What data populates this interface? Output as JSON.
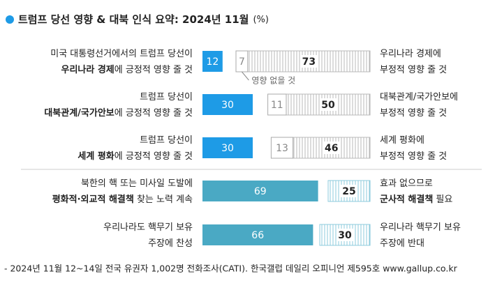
{
  "chart_data": {
    "type": "diverging-bar",
    "title": "트럼프 당선 영향 & 대북 인식 요약: 2024년 11월",
    "unit": "(%)",
    "annotation": "영향 없을 것",
    "footnote": "- 2024년 11월 12~14일 전국 유권자 1,002명 전화조사(CATI). 한국갤럽 데일리 오피니언 제595호 www.gallup.co.kr",
    "rows": [
      {
        "left_label": [
          [
            {
              "text": "미국 대통령선거에서의 트럼프 당선이"
            }
          ],
          [
            {
              "text": "우리나라 경제",
              "bold": true
            },
            {
              "text": "에 긍정적 영향 줄 것"
            }
          ]
        ],
        "right_label": [
          [
            {
              "text": "우리나라 경제에"
            }
          ],
          [
            {
              "text": "부정적 영향 줄 것"
            }
          ]
        ],
        "positive": 12,
        "neutral": 7,
        "negative": 73,
        "color": "#1e9be6",
        "negative_color": "#b8b8b8"
      },
      {
        "left_label": [
          [
            {
              "text": "트럼프 당선이"
            }
          ],
          [
            {
              "text": "대북관계/국가안보",
              "bold": true
            },
            {
              "text": "에 긍정적 영향 줄 것"
            }
          ]
        ],
        "right_label": [
          [
            {
              "text": "대북관계/국가안보에"
            }
          ],
          [
            {
              "text": "부정적 영향 줄 것"
            }
          ]
        ],
        "positive": 30,
        "neutral": 11,
        "negative": 50,
        "color": "#1e9be6",
        "negative_color": "#b8b8b8"
      },
      {
        "left_label": [
          [
            {
              "text": "트럼프 당선이"
            }
          ],
          [
            {
              "text": "세계 평화",
              "bold": true
            },
            {
              "text": "에 긍정적 영향 줄 것"
            }
          ]
        ],
        "right_label": [
          [
            {
              "text": "세계 평화에"
            }
          ],
          [
            {
              "text": "부정적 영향 줄 것"
            }
          ]
        ],
        "positive": 30,
        "neutral": 13,
        "negative": 46,
        "color": "#1e9be6",
        "negative_color": "#b8b8b8"
      },
      {
        "left_label": [
          [
            {
              "text": "북한의 핵 또는 미사일 도발에"
            }
          ],
          [
            {
              "text": "평화적·외교적 해결책",
              "bold": true
            },
            {
              "text": " 찾는 노력 계속"
            }
          ]
        ],
        "right_label": [
          [
            {
              "text": "효과 없으므로"
            }
          ],
          [
            {
              "text": "군사적 해결책",
              "bold": true
            },
            {
              "text": " 필요"
            }
          ]
        ],
        "positive": 69,
        "negative": 25,
        "color": "#4aa9c4",
        "negative_color": "#8ccbdc"
      },
      {
        "left_label": [
          [
            {
              "text": "우리나라도 핵무기 보유"
            }
          ],
          [
            {
              "text": "주장에 찬성"
            }
          ]
        ],
        "right_label": [
          [
            {
              "text": "우리나라 핵무기 보유"
            }
          ],
          [
            {
              "text": "주장에 반대"
            }
          ]
        ],
        "positive": 66,
        "negative": 30,
        "color": "#4aa9c4",
        "negative_color": "#8ccbdc"
      }
    ]
  }
}
